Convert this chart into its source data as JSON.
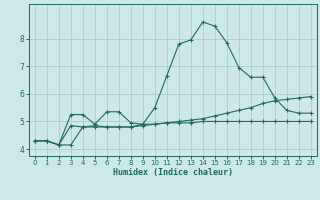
{
  "xlabel": "Humidex (Indice chaleur)",
  "ylabel": "",
  "xlim": [
    -0.5,
    23.5
  ],
  "ylim": [
    3.75,
    9.25
  ],
  "yticks": [
    4,
    5,
    6,
    7,
    8
  ],
  "xticks": [
    0,
    1,
    2,
    3,
    4,
    5,
    6,
    7,
    8,
    9,
    10,
    11,
    12,
    13,
    14,
    15,
    16,
    17,
    18,
    19,
    20,
    21,
    22,
    23
  ],
  "bg_color": "#cce8e8",
  "line_color": "#1e6b5e",
  "grid_color": "#aacfcf",
  "line1": [
    4.3,
    4.3,
    4.15,
    4.85,
    4.8,
    4.85,
    4.8,
    4.8,
    4.8,
    4.9,
    5.5,
    6.65,
    7.8,
    7.95,
    8.6,
    8.45,
    7.85,
    6.95,
    6.6,
    6.6,
    5.85,
    5.4,
    5.3,
    5.3
  ],
  "line2": [
    4.3,
    4.3,
    4.15,
    5.25,
    5.25,
    4.9,
    5.35,
    5.35,
    4.95,
    4.9,
    4.9,
    4.95,
    4.95,
    4.95,
    5.0,
    5.0,
    5.0,
    5.0,
    5.0,
    5.0,
    5.0,
    5.0,
    5.0,
    5.0
  ],
  "line3": [
    4.3,
    4.3,
    4.15,
    4.15,
    4.8,
    4.8,
    4.8,
    4.8,
    4.8,
    4.85,
    4.9,
    4.95,
    5.0,
    5.05,
    5.1,
    5.2,
    5.3,
    5.4,
    5.5,
    5.65,
    5.75,
    5.8,
    5.85,
    5.9
  ]
}
